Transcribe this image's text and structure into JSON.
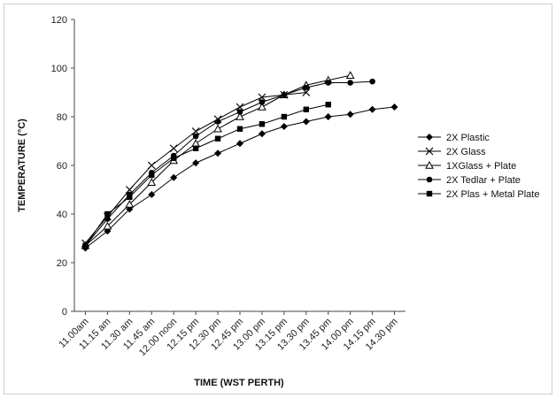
{
  "chart_data": {
    "type": "line",
    "title": "",
    "xlabel": "TIME (WST PERTH)",
    "ylabel": "TEMPERATURE (°C)",
    "ylim": [
      0,
      120
    ],
    "yticks": [
      0,
      20,
      40,
      60,
      80,
      100,
      120
    ],
    "categories": [
      "11.00am",
      "11.15 am",
      "11.30 am",
      "11.45 am",
      "12.00 noon",
      "12.15 pm",
      "12.30 pm",
      "12.45 pm",
      "13.00 pm",
      "13.15 pm",
      "13.30 pm",
      "13.45 pm",
      "14.00 pm",
      "14.15 pm",
      "14.30 pm"
    ],
    "grid": false,
    "legend": "right",
    "series": [
      {
        "name": "2X Plastic",
        "marker": "diamond",
        "values": [
          26,
          33,
          42,
          48,
          55,
          61,
          65,
          69,
          73,
          76,
          78,
          80,
          81,
          83,
          84
        ]
      },
      {
        "name": "2X Glass",
        "marker": "x",
        "values": [
          28,
          39,
          50,
          60,
          67,
          74,
          79,
          84,
          88,
          89,
          90,
          null,
          null,
          null,
          null
        ]
      },
      {
        "name": "1XGlass + Plate",
        "marker": "triangle",
        "values": [
          27,
          35,
          44,
          53,
          62,
          69,
          75,
          80,
          84,
          89,
          93,
          95,
          97,
          null,
          null
        ]
      },
      {
        "name": "2X Tedlar + Plate",
        "marker": "circle",
        "values": [
          27,
          38,
          48,
          57,
          64,
          72,
          78,
          82,
          86,
          89,
          92,
          94,
          94,
          94.5,
          null
        ]
      },
      {
        "name": "2X Plas + Metal Plate",
        "marker": "square",
        "values": [
          27,
          40,
          47,
          56,
          63,
          67,
          71,
          75,
          77,
          80,
          83,
          85,
          null,
          null,
          null
        ]
      }
    ]
  }
}
